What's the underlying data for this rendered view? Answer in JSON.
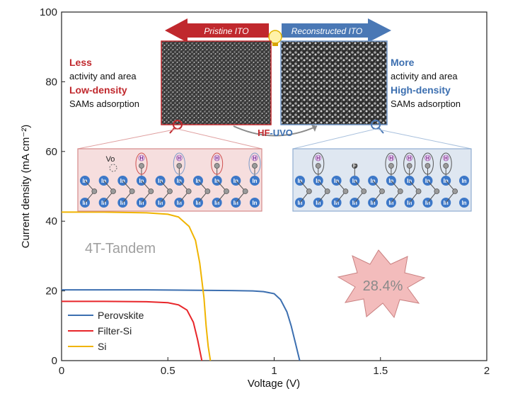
{
  "chart_data": {
    "type": "line",
    "xlabel": "Voltage (V)",
    "ylabel": "Current density (mA cm⁻²)",
    "xlim": [
      0,
      2
    ],
    "ylim": [
      0,
      100
    ],
    "x_ticks": [
      "0",
      "0.5",
      "1",
      "1.5",
      "2"
    ],
    "y_ticks": [
      "0",
      "20",
      "40",
      "60",
      "80",
      "100"
    ],
    "grid": false,
    "legend_position": "bottom-left",
    "series": [
      {
        "name": "Perovskite",
        "color": "#3c6fb0",
        "x": [
          0,
          0.2,
          0.4,
          0.6,
          0.8,
          0.9,
          0.95,
          1.0,
          1.03,
          1.06,
          1.08,
          1.1,
          1.12
        ],
        "y": [
          20.3,
          20.3,
          20.3,
          20.2,
          20.1,
          20.0,
          19.8,
          19.2,
          17.5,
          14.0,
          10.0,
          5.0,
          0
        ]
      },
      {
        "name": "Filter-Si",
        "color": "#e8262a",
        "x": [
          0,
          0.2,
          0.4,
          0.5,
          0.55,
          0.59,
          0.62,
          0.64,
          0.66
        ],
        "y": [
          17.0,
          17.0,
          16.9,
          16.6,
          16.0,
          14.5,
          11.0,
          6.0,
          0
        ]
      },
      {
        "name": "Si",
        "color": "#f0b400",
        "x": [
          0,
          0.2,
          0.4,
          0.5,
          0.55,
          0.6,
          0.63,
          0.65,
          0.67,
          0.68,
          0.69,
          0.7
        ],
        "y": [
          42.6,
          42.6,
          42.4,
          42.0,
          41.2,
          38.5,
          34.5,
          28.0,
          18.0,
          10.0,
          4.0,
          0
        ]
      }
    ]
  },
  "annotations": {
    "tandem_label": "4T-Tandem",
    "efficiency_label": "28.4%",
    "left_arrow": "Pristine ITO",
    "right_arrow": "Reconstructed ITO",
    "center_label_part1": "HF",
    "center_label_part2": "-UVO",
    "left_text": {
      "line1": "Less",
      "line2": "activity and area",
      "line3": "Low-density",
      "line4": "SAMs adsorption"
    },
    "right_text": {
      "line1": "More",
      "line2": "activity and area",
      "line3": "High-density",
      "line4": "SAMs adsorption"
    },
    "vacancy_label": "Vo",
    "atom_in": "In",
    "atom_o": "O",
    "atom_h": "H",
    "atom_f": "F"
  },
  "colors": {
    "red_accent": "#c0282d",
    "blue_accent": "#3c6fb0",
    "burst_fill": "#f3bcbc",
    "burst_text": "#8a8a8a"
  }
}
